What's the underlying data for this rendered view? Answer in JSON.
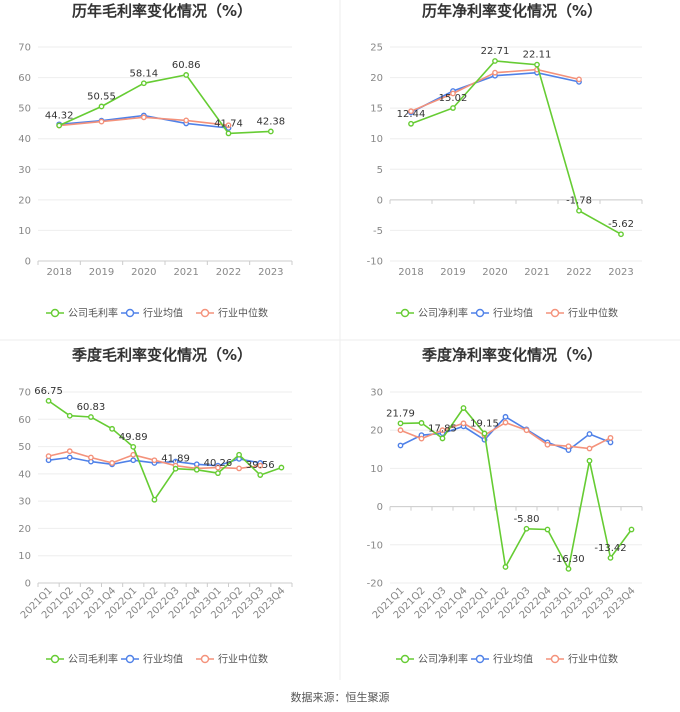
{
  "colors": {
    "company": "#66cc33",
    "industry_avg": "#4f81e8",
    "industry_median": "#f4927b"
  },
  "chart_data": [
    {
      "type": "line",
      "title": "历年毛利率变化情况（%）",
      "categories": [
        "2018",
        "2019",
        "2020",
        "2021",
        "2022",
        "2023"
      ],
      "ylim": [
        0,
        70
      ],
      "yticks": [
        0,
        10,
        20,
        30,
        40,
        50,
        60,
        70
      ],
      "series": [
        {
          "name": "公司毛利率",
          "key": "company",
          "values": [
            44.32,
            50.55,
            58.14,
            60.86,
            41.74,
            42.38
          ]
        },
        {
          "name": "行业均值",
          "key": "industry_avg",
          "values": [
            44.7,
            45.9,
            47.6,
            45.0,
            43.5,
            null
          ]
        },
        {
          "name": "行业中位数",
          "key": "industry_median",
          "values": [
            44.3,
            45.6,
            47.0,
            46.0,
            44.4,
            null
          ]
        }
      ],
      "labels": [
        {
          "index": 0,
          "text": "44.32"
        },
        {
          "index": 1,
          "text": "50.55"
        },
        {
          "index": 2,
          "text": "58.14"
        },
        {
          "index": 3,
          "text": "60.86"
        },
        {
          "index": 4,
          "text": "41.74"
        },
        {
          "index": 5,
          "text": "42.38"
        }
      ],
      "legend": [
        "公司毛利率",
        "行业均值",
        "行业中位数"
      ]
    },
    {
      "type": "line",
      "title": "历年净利率变化情况（%）",
      "categories": [
        "2018",
        "2019",
        "2020",
        "2021",
        "2022",
        "2023"
      ],
      "ylim": [
        -10,
        25
      ],
      "yticks": [
        -10,
        -5,
        0,
        5,
        10,
        15,
        20,
        25
      ],
      "series": [
        {
          "name": "公司净利率",
          "key": "company",
          "values": [
            12.44,
            15.02,
            22.71,
            22.11,
            -1.78,
            -5.62
          ]
        },
        {
          "name": "行业均值",
          "key": "industry_avg",
          "values": [
            14.3,
            17.8,
            20.3,
            20.8,
            19.3,
            null
          ]
        },
        {
          "name": "行业中位数",
          "key": "industry_median",
          "values": [
            14.5,
            17.4,
            20.8,
            21.3,
            19.7,
            null
          ]
        }
      ],
      "labels": [
        {
          "index": 0,
          "text": "12.44"
        },
        {
          "index": 1,
          "text": "15.02"
        },
        {
          "index": 2,
          "text": "22.71"
        },
        {
          "index": 3,
          "text": "22.11"
        },
        {
          "index": 4,
          "text": "-1.78"
        },
        {
          "index": 5,
          "text": "-5.62"
        }
      ],
      "legend": [
        "公司净利率",
        "行业均值",
        "行业中位数"
      ]
    },
    {
      "type": "line",
      "title": "季度毛利率变化情况（%）",
      "categories": [
        "2021Q1",
        "2021Q2",
        "2021Q3",
        "2021Q4",
        "2022Q1",
        "2022Q2",
        "2022Q3",
        "2022Q4",
        "2023Q1",
        "2023Q2",
        "2023Q3",
        "2023Q4"
      ],
      "ylim": [
        0,
        70
      ],
      "yticks": [
        0,
        10,
        20,
        30,
        40,
        50,
        60,
        70
      ],
      "series": [
        {
          "name": "公司毛利率",
          "key": "company",
          "values": [
            66.75,
            61.3,
            60.83,
            56.5,
            49.89,
            30.5,
            41.89,
            41.5,
            40.26,
            47.0,
            39.56,
            42.3
          ]
        },
        {
          "name": "行业均值",
          "key": "industry_avg",
          "values": [
            45.0,
            46.0,
            44.5,
            43.5,
            45.0,
            44.0,
            44.5,
            43.5,
            43.0,
            45.5,
            44.0,
            null
          ]
        },
        {
          "name": "行业中位数",
          "key": "industry_median",
          "values": [
            46.5,
            48.3,
            46.0,
            44.0,
            47.0,
            45.0,
            43.0,
            42.0,
            42.3,
            42.0,
            43.0,
            null
          ]
        }
      ],
      "labels": [
        {
          "index": 0,
          "text": "66.75"
        },
        {
          "index": 2,
          "text": "60.83"
        },
        {
          "index": 4,
          "text": "49.89"
        },
        {
          "index": 6,
          "text": "41.89"
        },
        {
          "index": 8,
          "text": "40.26"
        },
        {
          "index": 10,
          "text": "39.56"
        }
      ],
      "legend": [
        "公司毛利率",
        "行业均值",
        "行业中位数"
      ]
    },
    {
      "type": "line",
      "title": "季度净利率变化情况（%）",
      "categories": [
        "2021Q1",
        "2021Q2",
        "2021Q3",
        "2021Q4",
        "2022Q1",
        "2022Q2",
        "2022Q3",
        "2022Q4",
        "2023Q1",
        "2023Q2",
        "2023Q3",
        "2023Q4"
      ],
      "ylim": [
        -20,
        30
      ],
      "yticks": [
        -20,
        -10,
        0,
        10,
        20,
        30
      ],
      "series": [
        {
          "name": "公司净利率",
          "key": "company",
          "values": [
            21.79,
            21.9,
            17.85,
            25.8,
            19.15,
            -15.8,
            -5.8,
            -6.0,
            -16.3,
            12.0,
            -13.42,
            -6.0
          ]
        },
        {
          "name": "行业均值",
          "key": "industry_avg",
          "values": [
            16.0,
            18.7,
            19.2,
            21.0,
            17.5,
            23.5,
            20.2,
            16.8,
            14.8,
            19.0,
            16.8,
            null
          ]
        },
        {
          "name": "行业中位数",
          "key": "industry_median",
          "values": [
            20.0,
            17.8,
            20.0,
            21.8,
            18.7,
            22.0,
            20.0,
            16.2,
            15.8,
            15.2,
            18.0,
            null
          ]
        }
      ],
      "labels": [
        {
          "index": 0,
          "text": "21.79"
        },
        {
          "index": 2,
          "text": "17.85"
        },
        {
          "index": 4,
          "text": "19.15"
        },
        {
          "index": 6,
          "text": "-5.80"
        },
        {
          "index": 8,
          "text": "-16.30"
        },
        {
          "index": 10,
          "text": "-13.42"
        }
      ],
      "legend": [
        "公司净利率",
        "行业均值",
        "行业中位数"
      ]
    }
  ],
  "source": "数据来源：恒生聚源"
}
